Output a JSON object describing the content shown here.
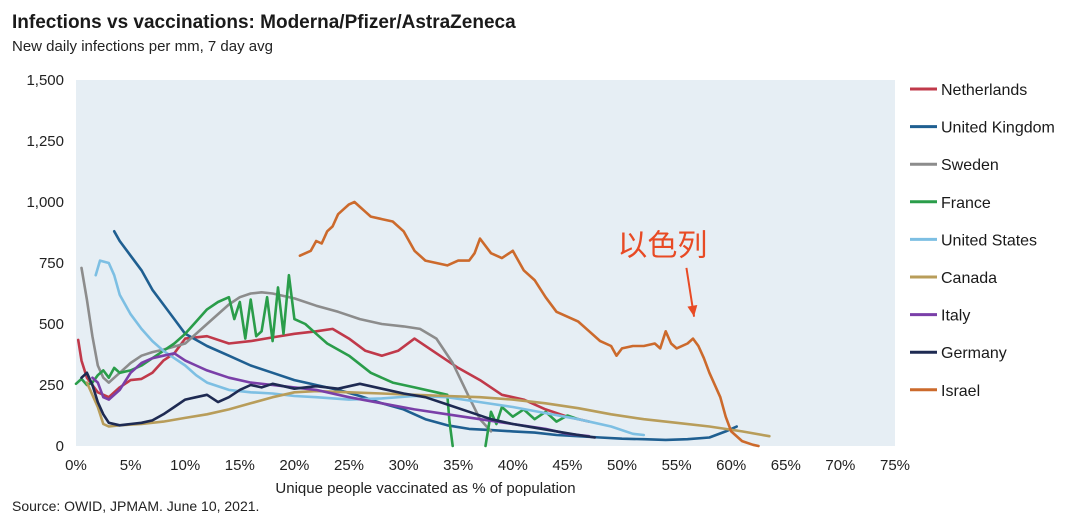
{
  "header": {
    "title": "Infections vs vaccinations: Moderna/Pfizer/AstraZeneca",
    "subtitle": "New daily infections per mm, 7 day avg"
  },
  "footer": {
    "source": "Source: OWID, JPMAM. June 10, 2021."
  },
  "colors": {
    "plot_bg": "#e6eef4",
    "annotation": "#e84a24"
  },
  "chart_data": {
    "type": "line",
    "title": "Infections vs vaccinations: Moderna/Pfizer/AstraZeneca",
    "subtitle": "New daily infections per mm, 7 day avg",
    "xlabel": "Unique people vaccinated as % of population",
    "ylabel": "",
    "xlim": [
      0,
      75
    ],
    "ylim": [
      0,
      1500
    ],
    "x_ticks": [
      0,
      5,
      10,
      15,
      20,
      25,
      30,
      35,
      40,
      45,
      50,
      55,
      60,
      65,
      70,
      75
    ],
    "x_tick_labels": [
      "0%",
      "5%",
      "10%",
      "15%",
      "20%",
      "25%",
      "30%",
      "35%",
      "40%",
      "45%",
      "50%",
      "55%",
      "60%",
      "65%",
      "70%",
      "75%"
    ],
    "y_ticks": [
      0,
      250,
      500,
      750,
      1000,
      1250,
      1500
    ],
    "y_tick_labels": [
      "0",
      "250",
      "500",
      "750",
      "1,000",
      "1,250",
      "1,500"
    ],
    "grid": false,
    "legend_position": "right",
    "annotation": {
      "text": "以色列",
      "x": 56.6,
      "y": 530,
      "arrow_from": [
        55.9,
        730
      ]
    },
    "series": [
      {
        "name": "Netherlands",
        "color": "#c0394a",
        "x": [
          0.2,
          0.5,
          1,
          2,
          3,
          4,
          5,
          6,
          7,
          8,
          9,
          10,
          12,
          14,
          16,
          18,
          20,
          22,
          23.5,
          25,
          26.5,
          28,
          29.5,
          31,
          33,
          35,
          37,
          39,
          41,
          43,
          45,
          47
        ],
        "y": [
          435,
          350,
          280,
          220,
          200,
          240,
          270,
          275,
          300,
          350,
          380,
          440,
          450,
          420,
          430,
          445,
          460,
          470,
          480,
          440,
          390,
          370,
          390,
          440,
          380,
          320,
          270,
          210,
          190,
          150,
          120,
          100
        ]
      },
      {
        "name": "United Kingdom",
        "color": "#1f5f91",
        "x": [
          3.5,
          4,
          5,
          6,
          7,
          8,
          9,
          10,
          12,
          14,
          16,
          18,
          20,
          22,
          24,
          26,
          28,
          30,
          32,
          34,
          36,
          38,
          40,
          42,
          44,
          46,
          48,
          50,
          52,
          54,
          56,
          58,
          59.5,
          60.5
        ],
        "y": [
          880,
          840,
          780,
          720,
          640,
          580,
          520,
          460,
          410,
          370,
          330,
          300,
          270,
          250,
          230,
          205,
          175,
          150,
          110,
          85,
          70,
          65,
          60,
          55,
          45,
          40,
          35,
          30,
          28,
          25,
          28,
          35,
          60,
          80
        ]
      },
      {
        "name": "Sweden",
        "color": "#8c8c8c",
        "x": [
          0.5,
          1,
          1.5,
          2,
          2.5,
          3,
          4,
          5,
          6,
          7,
          8,
          10,
          12,
          14,
          15,
          16,
          17,
          18,
          20,
          22,
          24,
          26,
          28,
          30,
          31.5,
          33,
          34.5,
          36,
          37,
          38
        ],
        "y": [
          730,
          600,
          450,
          330,
          280,
          260,
          300,
          340,
          370,
          385,
          395,
          420,
          500,
          580,
          610,
          625,
          630,
          625,
          605,
          575,
          550,
          520,
          500,
          490,
          480,
          440,
          340,
          200,
          110,
          60
        ]
      },
      {
        "name": "France",
        "color": "#2a9d4a",
        "x": [
          0,
          0.5,
          1,
          1.5,
          2,
          2.5,
          3,
          3.5,
          4,
          5,
          6,
          7,
          8,
          9,
          10,
          11,
          12,
          13,
          14,
          14.5,
          15,
          15.5,
          16,
          16.5,
          17,
          17.5,
          18,
          18.5,
          19,
          19.5,
          20,
          21,
          22,
          23,
          25,
          27,
          29,
          31,
          33,
          34,
          34.2,
          34.5
        ],
        "y": [
          255,
          275,
          250,
          260,
          290,
          310,
          280,
          320,
          300,
          310,
          330,
          360,
          390,
          420,
          460,
          510,
          560,
          590,
          610,
          520,
          590,
          440,
          600,
          450,
          470,
          610,
          430,
          650,
          460,
          700,
          520,
          500,
          460,
          420,
          370,
          300,
          260,
          240,
          220,
          210,
          100,
          0
        ]
      },
      {
        "name": "France (cont.)",
        "legend": false,
        "color": "#2a9d4a",
        "x": [
          37.5,
          38,
          38.5,
          39,
          40,
          41,
          42,
          43,
          44,
          45,
          46
        ],
        "y": [
          0,
          140,
          90,
          160,
          120,
          150,
          110,
          140,
          100,
          125,
          110
        ]
      },
      {
        "name": "United States",
        "color": "#7dbfe3",
        "x": [
          1.8,
          2.2,
          3,
          3.5,
          4,
          5,
          6,
          7,
          8,
          9,
          10,
          11,
          12,
          14,
          16,
          18,
          20,
          22,
          25,
          28,
          31,
          34,
          37,
          40,
          43,
          46,
          49,
          51,
          52
        ],
        "y": [
          700,
          760,
          750,
          700,
          620,
          540,
          480,
          430,
          390,
          360,
          330,
          290,
          260,
          230,
          220,
          215,
          205,
          200,
          190,
          195,
          205,
          200,
          180,
          160,
          135,
          110,
          80,
          50,
          45
        ]
      },
      {
        "name": "Canada",
        "color": "#b89d5a",
        "x": [
          1,
          2,
          2.5,
          3,
          4,
          6,
          8,
          10,
          12,
          14,
          16,
          18,
          20,
          22,
          25,
          28,
          31,
          34,
          37,
          40,
          43,
          46,
          49,
          52,
          55,
          58,
          61,
          63.5
        ],
        "y": [
          260,
          160,
          90,
          80,
          85,
          90,
          100,
          115,
          130,
          150,
          175,
          200,
          220,
          225,
          220,
          215,
          210,
          205,
          200,
          190,
          175,
          155,
          130,
          110,
          95,
          80,
          60,
          40
        ]
      },
      {
        "name": "Italy",
        "color": "#7a3fa8",
        "x": [
          1.5,
          2,
          2.5,
          3,
          4,
          5,
          6,
          7,
          8,
          9,
          10,
          11,
          12,
          14,
          16,
          18,
          20,
          22,
          25,
          28,
          31,
          34,
          37,
          40,
          43,
          45,
          47
        ],
        "y": [
          280,
          260,
          200,
          190,
          230,
          300,
          340,
          360,
          370,
          380,
          350,
          330,
          310,
          280,
          260,
          250,
          240,
          230,
          200,
          175,
          150,
          130,
          110,
          90,
          70,
          50,
          40
        ]
      },
      {
        "name": "Germany",
        "color": "#1e2a52",
        "x": [
          0.5,
          1,
          1.5,
          2,
          2.5,
          3,
          4,
          5,
          6,
          7,
          8,
          9,
          10,
          11,
          12,
          13,
          14,
          15,
          16,
          17,
          18,
          19,
          20,
          22,
          24,
          26,
          28,
          30,
          32,
          34,
          36,
          38,
          40,
          42,
          44,
          46,
          47.5
        ],
        "y": [
          280,
          300,
          250,
          180,
          130,
          95,
          85,
          90,
          95,
          105,
          130,
          160,
          190,
          200,
          210,
          180,
          200,
          230,
          250,
          240,
          255,
          245,
          235,
          245,
          235,
          255,
          235,
          215,
          200,
          170,
          140,
          110,
          90,
          75,
          60,
          45,
          35
        ]
      },
      {
        "name": "Israel",
        "color": "#cc6a2c",
        "x": [
          20.5,
          21.5,
          22,
          22.5,
          23,
          23.5,
          24,
          24.5,
          25,
          25.5,
          26,
          26.5,
          27,
          28,
          29,
          30,
          31,
          32,
          33,
          34,
          35,
          36,
          36.5,
          37,
          38,
          39,
          40,
          41,
          42,
          43,
          44,
          45,
          46,
          47,
          48,
          49,
          49.5,
          50,
          51,
          52,
          53,
          53.5,
          54,
          54.5,
          55,
          56,
          56.5,
          57,
          57.5,
          58,
          59,
          59.5,
          60,
          61,
          62,
          62.5
        ],
        "y": [
          780,
          800,
          840,
          830,
          880,
          900,
          950,
          970,
          990,
          1000,
          980,
          960,
          940,
          930,
          920,
          880,
          800,
          760,
          750,
          740,
          760,
          760,
          790,
          850,
          790,
          770,
          800,
          720,
          680,
          610,
          550,
          530,
          510,
          470,
          430,
          410,
          370,
          400,
          410,
          410,
          420,
          400,
          470,
          420,
          400,
          420,
          440,
          410,
          360,
          300,
          200,
          120,
          60,
          20,
          5,
          0
        ]
      }
    ]
  }
}
